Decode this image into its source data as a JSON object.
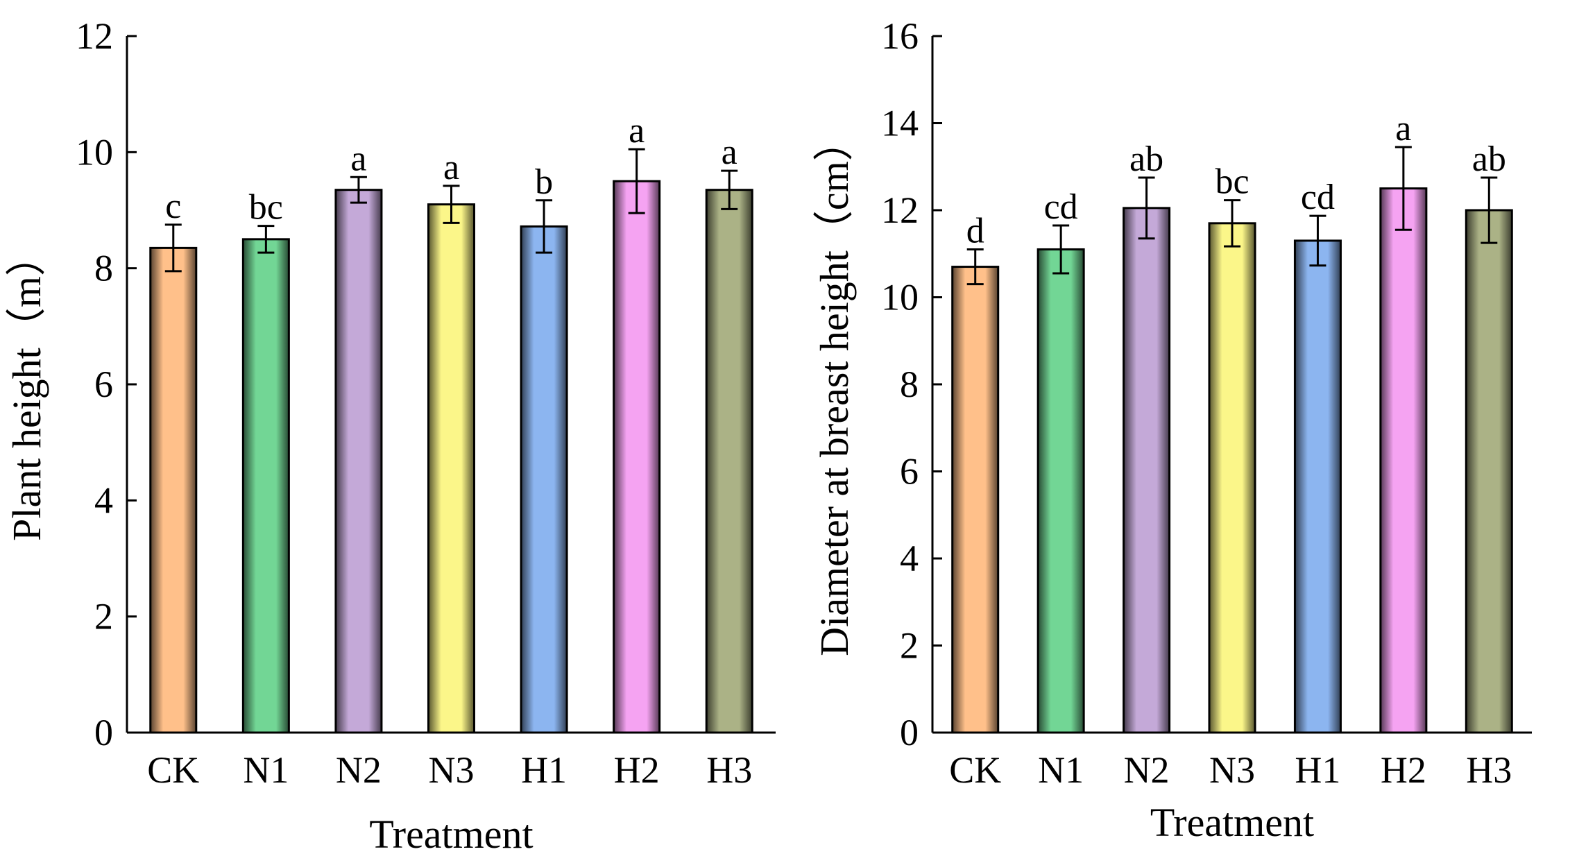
{
  "chart_data": [
    {
      "type": "bar",
      "title": "",
      "xlabel": "Treatment",
      "ylabel": "Plant height（m）",
      "categories": [
        "CK",
        "N1",
        "N2",
        "N3",
        "H1",
        "H2",
        "H3"
      ],
      "values": [
        8.35,
        8.5,
        9.35,
        9.1,
        8.72,
        9.5,
        9.35
      ],
      "errors": [
        0.4,
        0.23,
        0.22,
        0.32,
        0.45,
        0.55,
        0.33
      ],
      "significance": [
        "c",
        "bc",
        "a",
        "a",
        "b",
        "a",
        "a"
      ],
      "ylim": [
        0,
        12
      ],
      "yticks": [
        0,
        2,
        4,
        6,
        8,
        10,
        12
      ],
      "grid": false
    },
    {
      "type": "bar",
      "title": "",
      "xlabel": "Treatment",
      "ylabel": "Diameter at breast height（cm）",
      "categories": [
        "CK",
        "N1",
        "N2",
        "N3",
        "H1",
        "H2",
        "H3"
      ],
      "values": [
        10.7,
        11.1,
        12.05,
        11.7,
        11.3,
        12.5,
        12.0
      ],
      "errors": [
        0.4,
        0.55,
        0.7,
        0.53,
        0.57,
        0.95,
        0.75
      ],
      "significance": [
        "d",
        "cd",
        "ab",
        "bc",
        "cd",
        "a",
        "ab"
      ],
      "ylim": [
        0,
        16
      ],
      "yticks": [
        0,
        2,
        4,
        6,
        8,
        10,
        12,
        14,
        16
      ],
      "grid": false
    }
  ],
  "colors": {
    "bars": [
      "#FFC08A",
      "#72D695",
      "#C4A9D8",
      "#FBF689",
      "#8CB5F0",
      "#F5A3F2",
      "#ABB286"
    ],
    "outline": "#000000"
  }
}
